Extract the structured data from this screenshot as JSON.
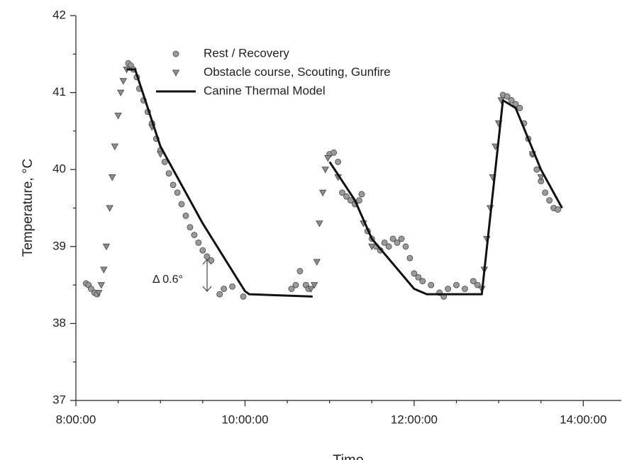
{
  "chart_data": {
    "type": "scatter",
    "xlabel": "Time",
    "ylabel": "Temperature, °C",
    "annotation": "Δ 0.6°",
    "xlim": [
      8,
      14.45
    ],
    "ylim": [
      37,
      42
    ],
    "xticks": [
      {
        "value": 8,
        "label": "8:00:00"
      },
      {
        "value": 10,
        "label": "10:00:00"
      },
      {
        "value": 12,
        "label": "12:00:00"
      },
      {
        "value": 14,
        "label": "14:00:00"
      }
    ],
    "xminorticks": [
      8.5,
      9,
      9.5,
      10.5,
      11,
      11.5,
      12.5,
      13,
      13.5,
      14.5
    ],
    "yticks": [
      37,
      38,
      39,
      40,
      41,
      42
    ],
    "yminorticks": [
      37.5,
      38.5,
      39.5,
      40.5,
      41.5
    ],
    "series": [
      {
        "name": "Rest / Recovery",
        "marker": "circle",
        "color": "#9a9a9a",
        "x": [
          8.12,
          8.15,
          8.18,
          8.22,
          8.25,
          8.62,
          8.65,
          8.68,
          8.72,
          8.75,
          8.8,
          8.85,
          8.9,
          8.95,
          9.0,
          9.05,
          9.1,
          9.15,
          9.2,
          9.25,
          9.3,
          9.35,
          9.4,
          9.45,
          9.5,
          9.55,
          9.6,
          9.7,
          9.75,
          9.85,
          9.98,
          10.55,
          10.6,
          10.65,
          10.72,
          10.75,
          11.0,
          11.05,
          11.1,
          11.15,
          11.2,
          11.25,
          11.3,
          11.35,
          11.38,
          11.45,
          11.5,
          11.55,
          11.6,
          11.65,
          11.7,
          11.75,
          11.8,
          11.85,
          11.9,
          11.95,
          12.0,
          12.05,
          12.1,
          12.2,
          12.3,
          12.35,
          12.4,
          12.5,
          12.6,
          12.7,
          12.75,
          13.05,
          13.1,
          13.15,
          13.2,
          13.25,
          13.3,
          13.35,
          13.4,
          13.45,
          13.5,
          13.55,
          13.6,
          13.65,
          13.7
        ],
        "values": [
          38.52,
          38.5,
          38.45,
          38.4,
          38.38,
          41.38,
          41.35,
          41.3,
          41.2,
          41.05,
          40.9,
          40.75,
          40.6,
          40.4,
          40.25,
          40.1,
          39.95,
          39.8,
          39.7,
          39.55,
          39.4,
          39.25,
          39.15,
          39.05,
          38.95,
          38.87,
          38.82,
          38.38,
          38.45,
          38.48,
          38.35,
          38.45,
          38.5,
          38.68,
          38.5,
          38.45,
          40.2,
          40.22,
          40.1,
          39.7,
          39.65,
          39.6,
          39.55,
          39.6,
          39.68,
          39.2,
          39.1,
          39.0,
          38.95,
          39.05,
          39.0,
          39.1,
          39.05,
          39.1,
          39.0,
          38.85,
          38.65,
          38.6,
          38.55,
          38.5,
          38.4,
          38.35,
          38.45,
          38.5,
          38.45,
          38.55,
          38.5,
          40.97,
          40.95,
          40.9,
          40.85,
          40.8,
          40.6,
          40.4,
          40.2,
          40.0,
          39.85,
          39.7,
          39.6,
          39.5,
          39.48
        ]
      },
      {
        "name": "Obstacle course, Scouting, Gunfire",
        "marker": "triangle",
        "color": "#8c8c8c",
        "x": [
          8.27,
          8.3,
          8.33,
          8.36,
          8.4,
          8.43,
          8.46,
          8.5,
          8.53,
          8.56,
          8.6,
          8.9,
          9.0,
          10.78,
          10.82,
          10.85,
          10.88,
          10.92,
          10.95,
          10.98,
          11.1,
          11.4,
          11.5,
          12.8,
          12.83,
          12.86,
          12.9,
          12.93,
          12.96,
          13.0,
          13.03,
          13.4,
          13.5
        ],
        "values": [
          38.4,
          38.5,
          38.7,
          39.0,
          39.5,
          39.9,
          40.3,
          40.7,
          41.0,
          41.15,
          41.3,
          40.55,
          40.2,
          38.45,
          38.5,
          38.8,
          39.3,
          39.7,
          40.0,
          40.15,
          39.9,
          39.3,
          39.0,
          38.45,
          38.7,
          39.1,
          39.5,
          39.9,
          40.3,
          40.6,
          40.9,
          40.2,
          39.9
        ]
      },
      {
        "name": "Canine Thermal Model",
        "marker": "line",
        "color": "#111111",
        "x": [
          8.6,
          8.7,
          9.0,
          9.5,
          10.0,
          10.05,
          10.8,
          10.9,
          11.0,
          11.3,
          11.5,
          12.0,
          12.15,
          12.8,
          13.05,
          13.2,
          13.5,
          13.75
        ],
        "values": [
          41.3,
          41.3,
          40.3,
          39.3,
          38.42,
          38.38,
          38.35,
          null,
          40.1,
          39.6,
          39.1,
          38.45,
          38.38,
          38.38,
          40.9,
          40.8,
          40.0,
          39.5
        ]
      }
    ]
  }
}
